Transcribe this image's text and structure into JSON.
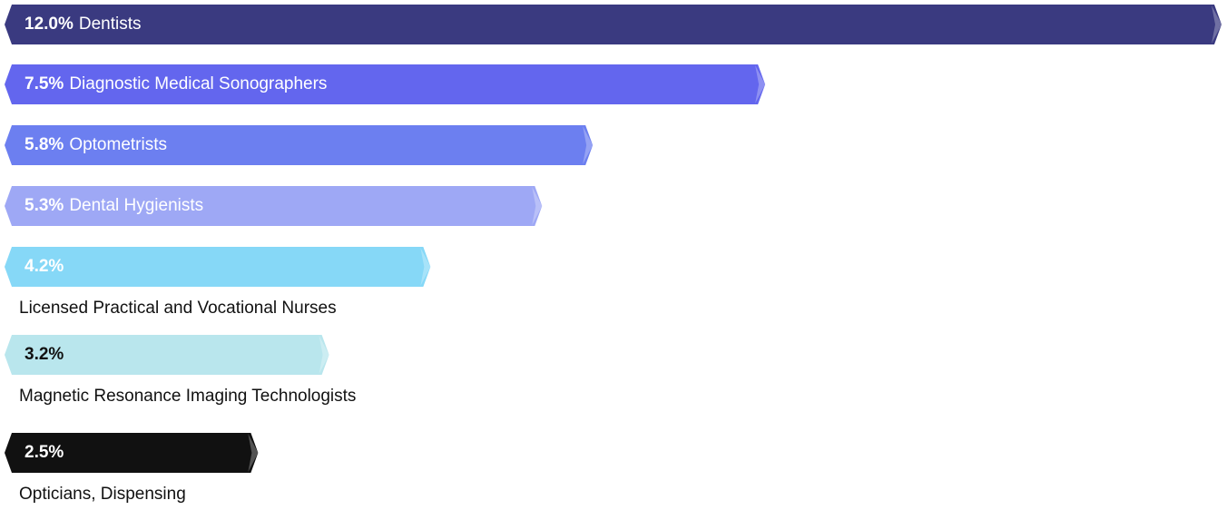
{
  "chart_data": {
    "type": "bar",
    "orientation": "horizontal",
    "title": "",
    "xlabel": "",
    "ylabel": "",
    "xlim": [
      0,
      12.0
    ],
    "grid": false,
    "legend": "none",
    "bars": [
      {
        "value": 12.0,
        "value_label": "12.0%",
        "category": "Dentists",
        "color": "#3a3a80",
        "text_color": "#ffffff",
        "label_inside": true
      },
      {
        "value": 7.5,
        "value_label": "7.5%",
        "category": "Diagnostic Medical Sonographers",
        "color": "#6366ee",
        "text_color": "#ffffff",
        "label_inside": true
      },
      {
        "value": 5.8,
        "value_label": "5.8%",
        "category": "Optometrists",
        "color": "#6c7ff0",
        "text_color": "#ffffff",
        "label_inside": true
      },
      {
        "value": 5.3,
        "value_label": "5.3%",
        "category": "Dental Hygienists",
        "color": "#9ea8f5",
        "text_color": "#ffffff",
        "label_inside": true
      },
      {
        "value": 4.2,
        "value_label": "4.2%",
        "category": "Licensed Practical and Vocational Nurses",
        "color": "#86d8f7",
        "text_color": "#ffffff",
        "label_inside": false
      },
      {
        "value": 3.2,
        "value_label": "3.2%",
        "category": "Magnetic Resonance Imaging Technologists",
        "color": "#b9e6ed",
        "text_color": "#111111",
        "label_inside": false
      },
      {
        "value": 2.5,
        "value_label": "2.5%",
        "category": "Opticians, Dispensing",
        "color": "#111111",
        "text_color": "#ffffff",
        "label_inside": false
      }
    ]
  }
}
